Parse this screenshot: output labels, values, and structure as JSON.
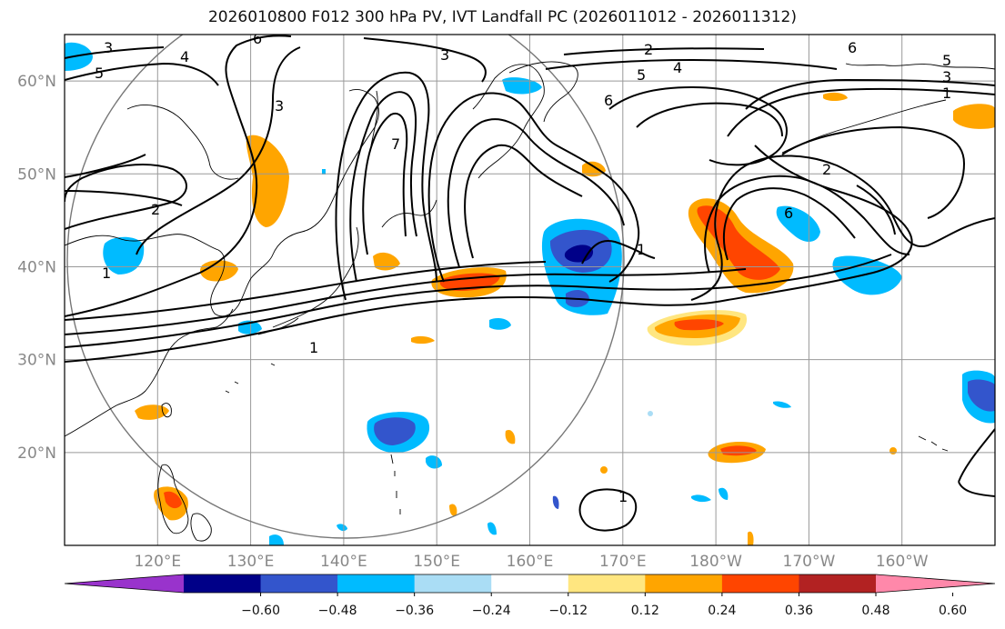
{
  "title": "2026010800 F012 300 hPa PV, IVT Landfall PC (2026011012 - 2026011312)",
  "axes": {
    "lon_ticks": [
      "120°E",
      "130°E",
      "140°E",
      "150°E",
      "160°E",
      "170°E",
      "180°W",
      "170°W",
      "160°W"
    ],
    "lon_values": [
      120,
      130,
      140,
      150,
      160,
      170,
      180,
      190,
      200
    ],
    "lat_ticks": [
      "60°N",
      "50°N",
      "40°N",
      "30°N",
      "20°N"
    ],
    "lat_values": [
      60,
      50,
      40,
      30,
      20
    ],
    "lon_range": [
      110,
      210
    ],
    "lat_range": [
      10,
      65
    ],
    "grid": true
  },
  "colorbar": {
    "labels": [
      "−0.60",
      "−0.48",
      "−0.36",
      "−0.24",
      "−0.12",
      "0.12",
      "0.24",
      "0.36",
      "0.48",
      "0.60"
    ],
    "colors": [
      "#9933cc",
      "#000088",
      "#3355cc",
      "#00bbff",
      "#aaddf5",
      "#ffffff",
      "#ffe680",
      "#ffa500",
      "#ff4500",
      "#b22222",
      "#ff88aa"
    ],
    "extend": "both"
  },
  "contour_labels": [
    "1",
    "2",
    "3",
    "4",
    "5",
    "6",
    "7"
  ],
  "colors": {
    "grid": "#999999",
    "coast": "#000000",
    "contour": "#000000",
    "circle": "#777777"
  }
}
